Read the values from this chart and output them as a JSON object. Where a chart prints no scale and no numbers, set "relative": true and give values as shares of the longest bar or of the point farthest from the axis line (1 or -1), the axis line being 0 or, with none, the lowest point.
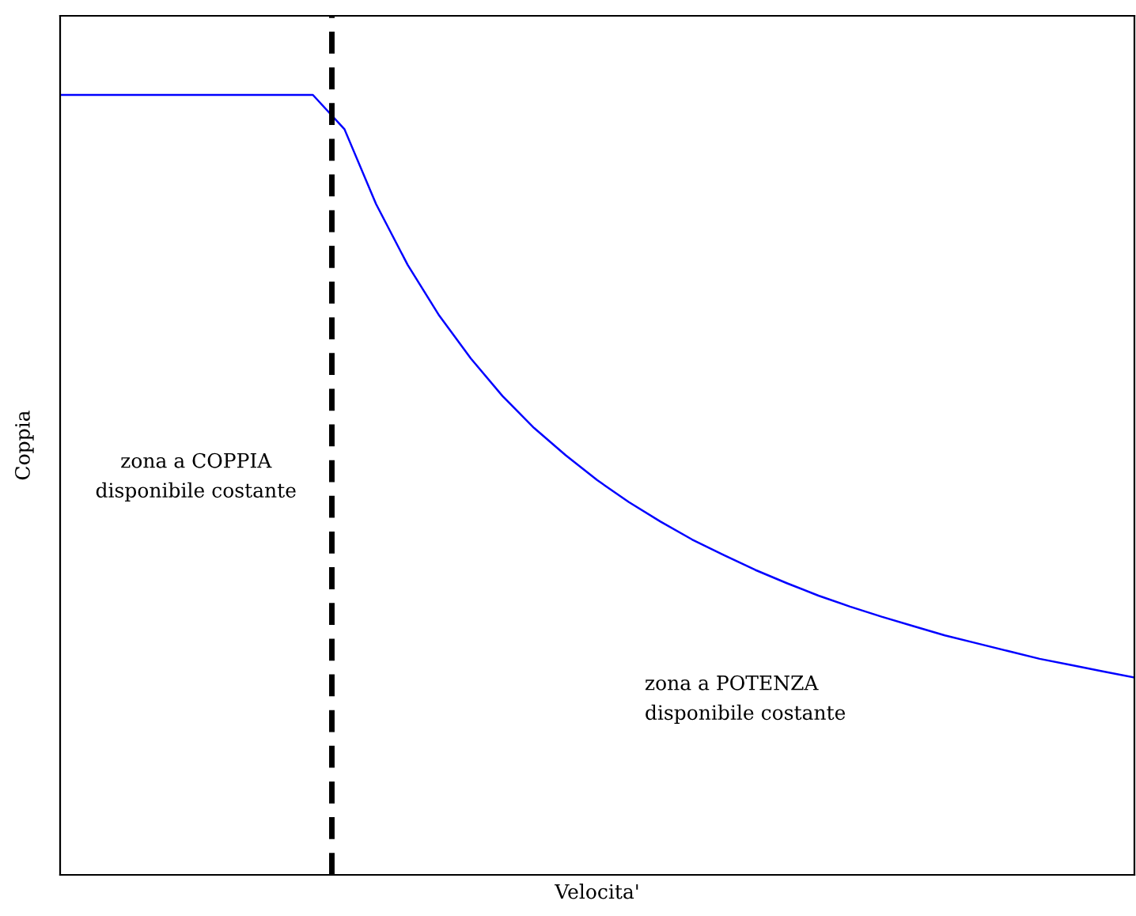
{
  "chart_data": {
    "type": "line",
    "relative": true,
    "xlabel": "Velocita'",
    "ylabel": "Coppia",
    "categories": [
      null,
      null,
      null,
      null,
      null,
      null,
      null,
      null,
      null,
      null,
      null,
      null,
      null,
      null,
      null,
      null,
      null,
      null,
      null,
      null,
      null,
      null,
      null,
      null,
      null,
      null,
      null,
      null,
      null,
      null,
      null,
      null,
      null,
      null,
      null
    ],
    "series": [
      {
        "color": "#0000ff",
        "values": [
          1,
          1,
          1,
          1,
          1,
          1,
          1,
          1,
          1,
          0.956,
          0.86,
          0.782,
          0.717,
          0.662,
          0.614,
          0.573,
          0.538,
          0.506,
          0.478,
          0.453,
          0.43,
          0.41,
          0.391,
          0.374,
          0.358,
          0.344,
          0.331,
          0.319,
          0.307,
          0.297,
          0.287,
          0.277,
          0.269,
          0.261,
          0.253
        ]
      }
    ],
    "annotations": [
      "zona a COPPIA\ndisponibile costante",
      "zona a POTENZA\ndisponibile costante"
    ],
    "marker": "none",
    "line_style": "solid",
    "legend": false
  }
}
